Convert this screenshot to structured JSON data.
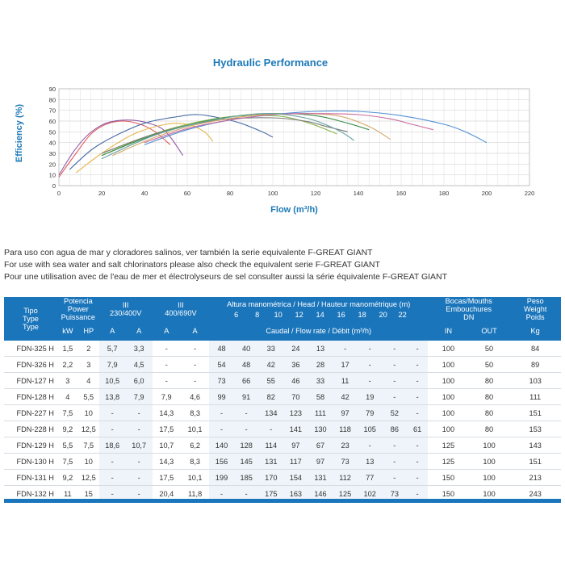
{
  "chart_data": {
    "type": "line",
    "title": "Hydraulic Performance",
    "xlabel": "Flow (m³/h)",
    "ylabel": "Efficiency (%)",
    "xlim": [
      0,
      220
    ],
    "ylim": [
      0,
      90
    ],
    "xticks": [
      0,
      20,
      40,
      60,
      80,
      100,
      120,
      140,
      160,
      180,
      200,
      220
    ],
    "yticks": [
      0,
      10,
      20,
      30,
      40,
      50,
      60,
      70,
      80,
      90
    ],
    "grid": true,
    "series": [
      {
        "color": "#e15d5d",
        "x": [
          0,
          8,
          15,
          22,
          30,
          38,
          45,
          52
        ],
        "y": [
          8,
          30,
          48,
          57,
          60,
          57,
          50,
          38
        ]
      },
      {
        "color": "#8e5ca8",
        "x": [
          0,
          7,
          14,
          22,
          32,
          42,
          50,
          58
        ],
        "y": [
          10,
          32,
          48,
          58,
          61,
          58,
          50,
          28
        ]
      },
      {
        "color": "#4a6ea8",
        "x": [
          5,
          15,
          25,
          40,
          55,
          65,
          75,
          85,
          95,
          100
        ],
        "y": [
          15,
          33,
          45,
          58,
          64,
          66,
          63,
          58,
          50,
          45
        ]
      },
      {
        "color": "#e8b54a",
        "x": [
          8,
          20,
          35,
          50,
          60,
          68,
          72
        ],
        "y": [
          12,
          30,
          48,
          57,
          57,
          50,
          41
        ]
      },
      {
        "color": "#8bb64a",
        "x": [
          20,
          40,
          60,
          80,
          100,
          110,
          120,
          130
        ],
        "y": [
          28,
          45,
          57,
          64,
          65,
          62,
          56,
          48
        ]
      },
      {
        "color": "#7a7a7a",
        "x": [
          20,
          40,
          60,
          80,
          100,
          115,
          125,
          135
        ],
        "y": [
          30,
          45,
          56,
          62,
          63,
          60,
          55,
          50
        ]
      },
      {
        "color": "#3f8f4a",
        "x": [
          20,
          40,
          60,
          80,
          100,
          120,
          135,
          145
        ],
        "y": [
          28,
          44,
          56,
          64,
          67,
          65,
          58,
          52
        ]
      },
      {
        "color": "#d6a86a",
        "x": [
          25,
          45,
          65,
          90,
          110,
          130,
          145,
          155
        ],
        "y": [
          28,
          45,
          57,
          65,
          67,
          65,
          55,
          43
        ]
      },
      {
        "color": "#4f8fd6",
        "x": [
          40,
          60,
          80,
          100,
          120,
          140,
          160,
          180,
          190,
          200
        ],
        "y": [
          38,
          52,
          61,
          66,
          69,
          69,
          65,
          57,
          50,
          40
        ]
      },
      {
        "color": "#c96b9e",
        "x": [
          40,
          60,
          80,
          100,
          120,
          140,
          155,
          165,
          175
        ],
        "y": [
          40,
          53,
          61,
          66,
          67,
          66,
          62,
          57,
          52
        ]
      },
      {
        "color": "#6aa3a3",
        "x": [
          20,
          45,
          70,
          95,
          115,
          130,
          138
        ],
        "y": [
          25,
          47,
          60,
          67,
          63,
          52,
          42
        ]
      }
    ]
  },
  "notes": [
    "Para uso con agua de mar y cloradores salinos, ver también la serie equivalente F-GREAT GIANT",
    "For use with sea water and salt chlorinators please also check the equivalent serie F-GREAT GIANT",
    "Pour une utilisation avec de l'eau de mer et électrolyseurs de sel consulter aussi la série équivalente F-GREAT GIANT"
  ],
  "table": {
    "tipo": [
      "Tipo",
      "Type",
      "Type"
    ],
    "potencia": [
      "Potencia",
      "Power",
      "Puissance"
    ],
    "kw": "kW",
    "hp": "HP",
    "v230": [
      "III",
      "230/400V"
    ],
    "v400": [
      "III",
      "400/690V"
    ],
    "amp": "A",
    "altura": "Altura manométrica / Head / Hauteur manométrique (m)",
    "caudal": "Caudal / Flow rate / Débit (m³/h)",
    "heads": [
      "6",
      "8",
      "10",
      "12",
      "14",
      "16",
      "18",
      "20",
      "22"
    ],
    "bocas": [
      "Bocas/Mouths",
      "Embouchures",
      "DN"
    ],
    "in": "IN",
    "out": "OUT",
    "peso": [
      "Peso",
      "Weight",
      "Poids",
      "Kg"
    ],
    "rows": [
      [
        "FDN-325 H",
        "1,5",
        "2",
        "5,7",
        "3,3",
        "-",
        "-",
        "48",
        "40",
        "33",
        "24",
        "13",
        "-",
        "-",
        "-",
        "-",
        "100",
        "50",
        "84"
      ],
      [
        "FDN-326 H",
        "2,2",
        "3",
        "7,9",
        "4,5",
        "-",
        "-",
        "54",
        "48",
        "42",
        "36",
        "28",
        "17",
        "-",
        "-",
        "-",
        "100",
        "50",
        "89"
      ],
      [
        "FDN-127 H",
        "3",
        "4",
        "10,5",
        "6,0",
        "-",
        "-",
        "73",
        "66",
        "55",
        "46",
        "33",
        "11",
        "-",
        "-",
        "-",
        "100",
        "80",
        "103"
      ],
      [
        "FDN-128 H",
        "4",
        "5,5",
        "13,8",
        "7,9",
        "7,9",
        "4,6",
        "99",
        "91",
        "82",
        "70",
        "58",
        "42",
        "19",
        "-",
        "-",
        "100",
        "80",
        "111"
      ],
      [
        "FDN-227 H",
        "7,5",
        "10",
        "-",
        "-",
        "14,3",
        "8,3",
        "-",
        "-",
        "134",
        "123",
        "111",
        "97",
        "79",
        "52",
        "-",
        "100",
        "80",
        "151"
      ],
      [
        "FDN-228 H",
        "9,2",
        "12,5",
        "-",
        "-",
        "17,5",
        "10,1",
        "-",
        "-",
        "-",
        "141",
        "130",
        "118",
        "105",
        "86",
        "61",
        "100",
        "80",
        "153"
      ],
      [
        "FDN-129 H",
        "5,5",
        "7,5",
        "18,6",
        "10,7",
        "10,7",
        "6,2",
        "140",
        "128",
        "114",
        "97",
        "67",
        "23",
        "-",
        "-",
        "-",
        "125",
        "100",
        "143"
      ],
      [
        "FDN-130 H",
        "7,5",
        "10",
        "-",
        "-",
        "14,3",
        "8,3",
        "156",
        "145",
        "131",
        "117",
        "97",
        "73",
        "13",
        "-",
        "-",
        "125",
        "100",
        "151"
      ],
      [
        "FDN-131 H",
        "9,2",
        "12,5",
        "-",
        "-",
        "17,5",
        "10,1",
        "199",
        "185",
        "170",
        "154",
        "131",
        "112",
        "77",
        "-",
        "-",
        "150",
        "100",
        "213"
      ],
      [
        "FDN-132 H",
        "11",
        "15",
        "-",
        "-",
        "20,4",
        "11,8",
        "-",
        "-",
        "175",
        "163",
        "146",
        "125",
        "102",
        "73",
        "-",
        "150",
        "100",
        "243"
      ]
    ]
  }
}
